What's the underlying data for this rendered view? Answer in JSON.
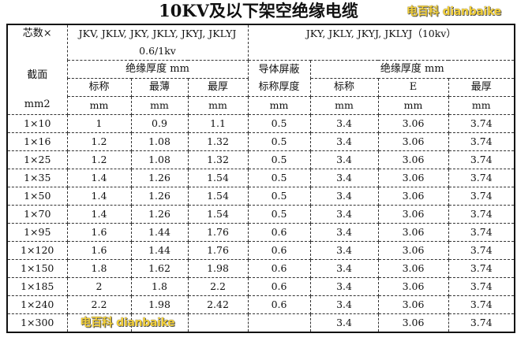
{
  "title": "10KV及以下架空绝缘电缆",
  "header": {
    "col0_top": "芯数×",
    "col0_mid": "截面",
    "col0_unit": "mm2",
    "group1_models": "JKV, JKLV, JKY, JKLY, JKYJ, JKLYJ",
    "group1_voltage": "0.6/1kv",
    "group2_models": "JKY, JKLY, JKYJ, JKLYJ（10kv）",
    "insulation_thickness": "绝缘厚度  mm",
    "shield_line1": "导体屏蔽",
    "shield_line2": "标称厚度",
    "sub": [
      "标称",
      "最薄",
      "最厚",
      "标称",
      "E",
      "最厚"
    ],
    "units": [
      "mm",
      "mm",
      "mm",
      "mm",
      "mm",
      "mm",
      "mm"
    ]
  },
  "rows": [
    [
      "1×10",
      "1",
      "0.9",
      "1.1",
      "0.5",
      "3.4",
      "3.06",
      "3.74"
    ],
    [
      "1×16",
      "1.2",
      "1.08",
      "1.32",
      "0.5",
      "3.4",
      "3.06",
      "3.74"
    ],
    [
      "1×25",
      "1.2",
      "1.08",
      "1.32",
      "0.5",
      "3.4",
      "3.06",
      "3.74"
    ],
    [
      "1×35",
      "1.4",
      "1.26",
      "1.54",
      "0.5",
      "3.4",
      "3.06",
      "3.74"
    ],
    [
      "1×50",
      "1.4",
      "1.26",
      "1.54",
      "0.5",
      "3.4",
      "3.06",
      "3.74"
    ],
    [
      "1×70",
      "1.4",
      "1.26",
      "1.54",
      "0.5",
      "3.4",
      "3.06",
      "3.74"
    ],
    [
      "1×95",
      "1.6",
      "1.44",
      "1.76",
      "0.6",
      "3.4",
      "3.06",
      "3.74"
    ],
    [
      "1×120",
      "1.6",
      "1.44",
      "1.76",
      "0.6",
      "3.4",
      "3.06",
      "3.74"
    ],
    [
      "1×150",
      "1.8",
      "1.62",
      "1.98",
      "0.6",
      "3.4",
      "3.06",
      "3.74"
    ],
    [
      "1×185",
      "2",
      "1.8",
      "2.2",
      "0.6",
      "3.4",
      "3.06",
      "3.74"
    ],
    [
      "1×240",
      "2.2",
      "1.98",
      "2.42",
      "0.6",
      "3.4",
      "3.06",
      "3.74"
    ],
    [
      "1×300",
      "",
      "",
      "",
      "",
      "3.4",
      "3.06",
      "3.74"
    ]
  ],
  "watermark": "电百科 dianbaike"
}
